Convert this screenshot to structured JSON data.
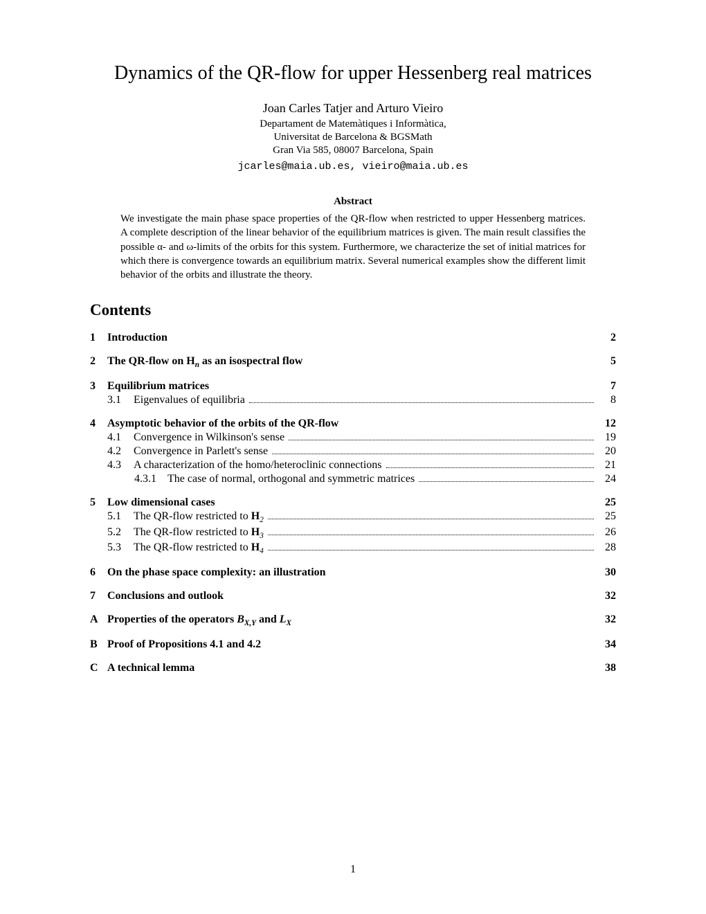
{
  "title": "Dynamics of the QR-flow for upper Hessenberg real matrices",
  "authors": "Joan Carles Tatjer and Arturo Vieiro",
  "affiliation1": "Departament de Matemàtiques i Informàtica,",
  "affiliation2": "Universitat de Barcelona & BGSMath",
  "affiliation3": "Gran Via 585, 08007 Barcelona, Spain",
  "emails": "jcarles@maia.ub.es, vieiro@maia.ub.es",
  "abstract_heading": "Abstract",
  "abstract_body": "We investigate the main phase space properties of the QR-flow when restricted to upper Hessenberg matrices. A complete description of the linear behavior of the equilibrium matrices is given. The main result classifies the possible α- and ω-limits of the orbits for this system. Furthermore, we characterize the set of initial matrices for which there is convergence towards an equilibrium matrix. Several numerical examples show the different limit behavior of the orbits and illustrate the theory.",
  "contents_heading": "Contents",
  "toc": [
    {
      "type": "section",
      "num": "1",
      "label": "Introduction",
      "page": "2"
    },
    {
      "type": "section",
      "num": "2",
      "label_html": "The QR-flow on <b>H</b><span class='sub'>n</span> as an isospectral flow",
      "page": "5"
    },
    {
      "type": "section",
      "num": "3",
      "label": "Equilibrium matrices",
      "page": "7"
    },
    {
      "type": "subsection",
      "num": "3.1",
      "label": "Eigenvalues of equilibria",
      "page": "8"
    },
    {
      "type": "section",
      "num": "4",
      "label": "Asymptotic behavior of the orbits of the QR-flow",
      "page": "12"
    },
    {
      "type": "subsection",
      "num": "4.1",
      "label": "Convergence in Wilkinson's sense",
      "page": "19"
    },
    {
      "type": "subsection",
      "num": "4.2",
      "label": "Convergence in Parlett's sense",
      "page": "20"
    },
    {
      "type": "subsection",
      "num": "4.3",
      "label": "A characterization of the homo/heteroclinic connections",
      "page": "21"
    },
    {
      "type": "subsubsection",
      "num": "4.3.1",
      "label": "The case of normal, orthogonal and symmetric matrices",
      "page": "24"
    },
    {
      "type": "section",
      "num": "5",
      "label": "Low dimensional cases",
      "page": "25"
    },
    {
      "type": "subsection",
      "num": "5.1",
      "label_html": "The QR-flow restricted to <b>H</b><span class='sub'>2</span>",
      "page": "25"
    },
    {
      "type": "subsection",
      "num": "5.2",
      "label_html": "The QR-flow restricted to <b>H</b><span class='sub'>3</span>",
      "page": "26"
    },
    {
      "type": "subsection",
      "num": "5.3",
      "label_html": "The QR-flow restricted to <b>H</b><span class='sub'>4</span>",
      "page": "28"
    },
    {
      "type": "section",
      "num": "6",
      "label": "On the phase space complexity: an illustration",
      "page": "30"
    },
    {
      "type": "section",
      "num": "7",
      "label": "Conclusions and outlook",
      "page": "32"
    },
    {
      "type": "section",
      "num": "A",
      "label_html": "Properties of the operators <span class='cal'>B</span><span class='sub'>X,Y</span> and <span class='math-i'>L</span><span class='sub'>X</span>",
      "page": "32"
    },
    {
      "type": "section",
      "num": "B",
      "label": "Proof of Propositions 4.1 and 4.2",
      "page": "34"
    },
    {
      "type": "section",
      "num": "C",
      "label": "A technical lemma",
      "page": "38"
    }
  ],
  "page_number": "1"
}
